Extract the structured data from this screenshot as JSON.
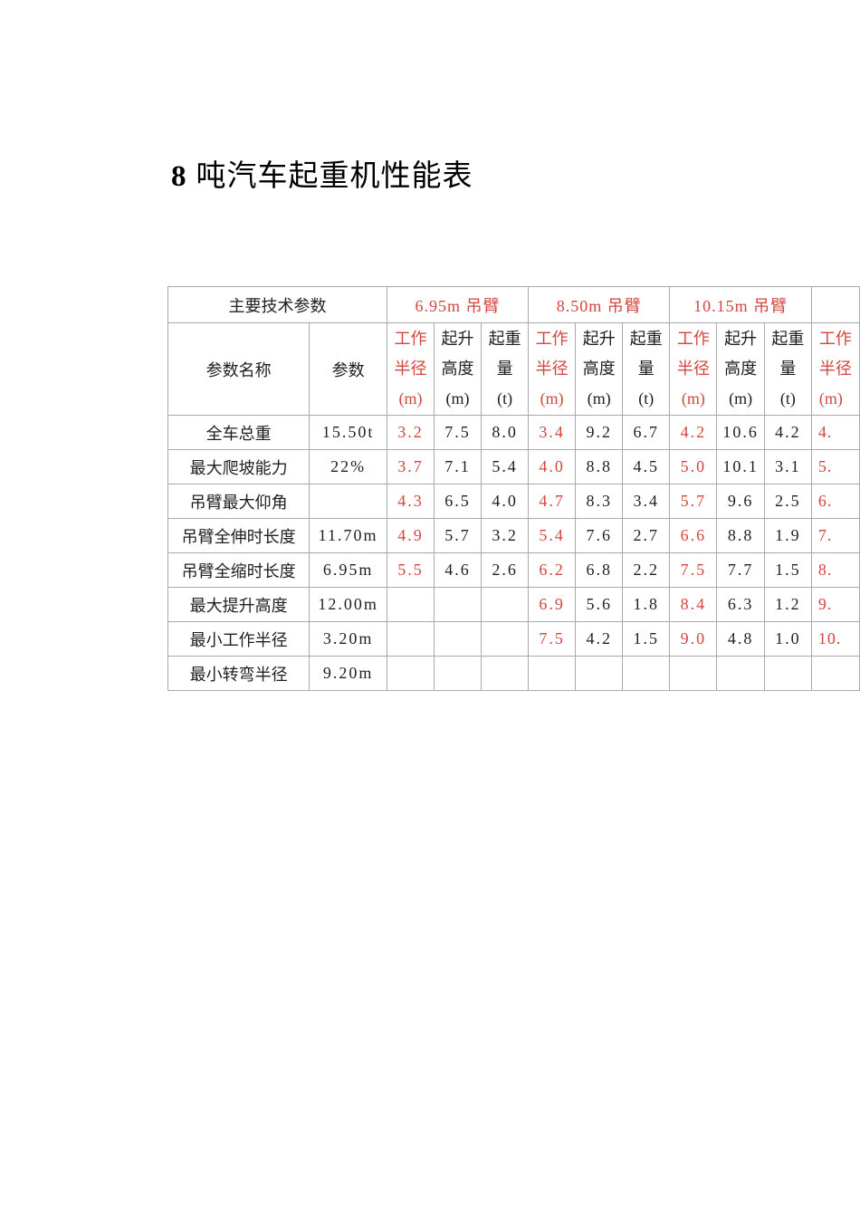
{
  "page": {
    "title_prefix": "8",
    "title_main": "吨汽车起重机性能表"
  },
  "colors": {
    "accent_red": "#d5453e",
    "text": "#1f1f1f",
    "grid_border": "#a9a9a9",
    "background": "#ffffff"
  },
  "table": {
    "top_left_header": "主要技术参数",
    "col1_header": "参数名称",
    "col2_header": "参数",
    "boom_groups": [
      {
        "label": "6.95m 吊臂"
      },
      {
        "label": "8.50m 吊臂"
      },
      {
        "label": "10.15m 吊臂"
      },
      {
        "label": ""
      }
    ],
    "sub_headers": [
      {
        "lines": [
          "工作",
          "半径",
          "(m)"
        ],
        "red": true
      },
      {
        "lines": [
          "起升",
          "高度",
          "(m)"
        ],
        "red": false
      },
      {
        "lines": [
          "起重",
          "量",
          "(t)"
        ],
        "red": false
      }
    ],
    "rows": [
      {
        "name": "全车总重",
        "param": "15.50t",
        "values": [
          "3.2",
          "7.5",
          "8.0",
          "3.4",
          "9.2",
          "6.7",
          "4.2",
          "10.6",
          "4.2",
          "4."
        ]
      },
      {
        "name": "最大爬坡能力",
        "param": "22%",
        "values": [
          "3.7",
          "7.1",
          "5.4",
          "4.0",
          "8.8",
          "4.5",
          "5.0",
          "10.1",
          "3.1",
          "5."
        ]
      },
      {
        "name": "吊臂最大仰角",
        "param": "",
        "values": [
          "4.3",
          "6.5",
          "4.0",
          "4.7",
          "8.3",
          "3.4",
          "5.7",
          "9.6",
          "2.5",
          "6."
        ]
      },
      {
        "name": "吊臂全伸时长度",
        "param": "11.70m",
        "values": [
          "4.9",
          "5.7",
          "3.2",
          "5.4",
          "7.6",
          "2.7",
          "6.6",
          "8.8",
          "1.9",
          "7."
        ]
      },
      {
        "name": "吊臂全缩时长度",
        "param": "6.95m",
        "values": [
          "5.5",
          "4.6",
          "2.6",
          "6.2",
          "6.8",
          "2.2",
          "7.5",
          "7.7",
          "1.5",
          "8."
        ]
      },
      {
        "name": "最大提升高度",
        "param": "12.00m",
        "values": [
          "",
          "",
          "",
          "6.9",
          "5.6",
          "1.8",
          "8.4",
          "6.3",
          "1.2",
          "9."
        ]
      },
      {
        "name": "最小工作半径",
        "param": "3.20m",
        "values": [
          "",
          "",
          "",
          "7.5",
          "4.2",
          "1.5",
          "9.0",
          "4.8",
          "1.0",
          "10."
        ]
      },
      {
        "name": "最小转弯半径",
        "param": "9.20m",
        "values": [
          "",
          "",
          "",
          "",
          "",
          "",
          "",
          "",
          "",
          ""
        ]
      }
    ]
  }
}
